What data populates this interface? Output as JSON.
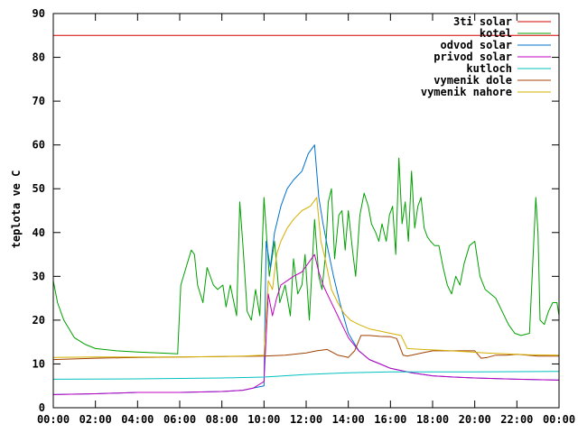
{
  "chart_data": {
    "type": "line",
    "title": "",
    "xlabel": "",
    "ylabel": "teplota ve C",
    "x_ticks": [
      "00:00",
      "02:00",
      "04:00",
      "06:00",
      "08:00",
      "10:00",
      "12:00",
      "14:00",
      "16:00",
      "18:00",
      "20:00",
      "22:00",
      "00:00"
    ],
    "y_ticks": [
      "0",
      "10",
      "20",
      "30",
      "40",
      "50",
      "60",
      "70",
      "80",
      "90"
    ],
    "xlim": [
      0,
      24
    ],
    "ylim": [
      0,
      90
    ],
    "grid": false,
    "legend_position": "top-right",
    "x_unit": "hours since 00:00",
    "series": [
      {
        "name": "3ti solar",
        "color": "#d40000",
        "x": [
          0,
          24
        ],
        "y": [
          85,
          85
        ]
      },
      {
        "name": "kotel",
        "color": "#00a000",
        "x": [
          0,
          0.2,
          0.5,
          1,
          1.5,
          2,
          3,
          4,
          5,
          5.5,
          5.9,
          6.05,
          6.3,
          6.55,
          6.7,
          6.85,
          7.1,
          7.3,
          7.6,
          7.8,
          8.05,
          8.2,
          8.4,
          8.7,
          8.85,
          9.0,
          9.2,
          9.4,
          9.6,
          9.8,
          10.0,
          10.25,
          10.5,
          10.75,
          11.0,
          11.25,
          11.4,
          11.6,
          11.8,
          11.95,
          12.15,
          12.4,
          12.6,
          12.75,
          12.9,
          13.05,
          13.2,
          13.35,
          13.55,
          13.7,
          13.85,
          14.0,
          14.2,
          14.35,
          14.55,
          14.75,
          14.95,
          15.1,
          15.3,
          15.45,
          15.6,
          15.8,
          15.95,
          16.1,
          16.25,
          16.4,
          16.55,
          16.7,
          16.85,
          17.0,
          17.15,
          17.3,
          17.45,
          17.6,
          17.75,
          17.9,
          18.1,
          18.3,
          18.5,
          18.7,
          18.9,
          19.1,
          19.3,
          19.5,
          19.75,
          20.0,
          20.25,
          20.5,
          20.75,
          21.0,
          21.3,
          21.6,
          21.9,
          22.2,
          22.6,
          22.9,
          23.0,
          23.1,
          23.3,
          23.5,
          23.7,
          23.9,
          24.0
        ],
        "y": [
          29,
          24,
          20,
          16,
          14.5,
          13.5,
          13,
          12.7,
          12.5,
          12.4,
          12.3,
          28,
          32,
          36,
          35,
          28,
          24,
          32,
          28,
          27,
          28,
          23,
          28,
          21,
          47,
          37,
          22,
          20,
          27,
          21,
          48,
          30,
          38,
          24,
          28,
          21,
          34,
          26,
          28,
          35,
          20,
          43,
          30,
          27,
          34,
          47,
          50,
          34,
          44,
          45,
          36,
          45,
          36,
          30,
          44,
          49,
          46,
          42,
          40,
          38,
          42,
          38,
          44,
          46,
          35,
          57,
          42,
          47,
          38,
          54,
          41,
          46,
          48,
          41,
          39,
          38,
          37,
          37,
          32,
          28,
          26,
          30,
          28,
          33,
          37,
          38,
          30,
          27,
          26,
          25,
          22,
          19,
          17,
          16.5,
          17,
          48,
          40,
          20,
          19,
          22,
          24,
          24,
          21
        ]
      },
      {
        "name": "odvod solar",
        "color": "#0070d0",
        "x": [
          0,
          2,
          4,
          6,
          8,
          9,
          9.5,
          10.0,
          10.1,
          10.3,
          10.5,
          10.8,
          11.1,
          11.4,
          11.8,
          12.1,
          12.4,
          12.6,
          12.8,
          13.0,
          13.3,
          13.6,
          14.0,
          14.5,
          15.0,
          15.5,
          16.0,
          17,
          18,
          19,
          20,
          22,
          24
        ],
        "y": [
          3,
          3.2,
          3.5,
          3.5,
          3.7,
          4,
          4.5,
          5,
          38,
          32,
          40,
          46,
          50,
          52,
          54,
          58,
          60,
          48,
          42,
          37,
          30,
          24,
          17,
          13,
          11,
          10,
          9,
          8,
          7.3,
          7,
          6.8,
          6.5,
          6.3
        ]
      },
      {
        "name": "privod solar",
        "color": "#c000c0",
        "x": [
          0,
          2,
          4,
          6,
          8,
          9,
          9.5,
          10.0,
          10.2,
          10.4,
          10.6,
          10.8,
          11.1,
          11.4,
          11.8,
          12.1,
          12.4,
          12.6,
          12.8,
          13.0,
          13.3,
          13.6,
          14.0,
          14.5,
          15.0,
          15.5,
          16.0,
          17,
          18,
          19,
          20,
          22,
          24
        ],
        "y": [
          3,
          3.2,
          3.5,
          3.5,
          3.7,
          4,
          4.5,
          6,
          26,
          21,
          25,
          28,
          29,
          30,
          31,
          33,
          35,
          31,
          28,
          26,
          23,
          20,
          16,
          13,
          11,
          10,
          9,
          8,
          7.3,
          7,
          6.8,
          6.5,
          6.3
        ]
      },
      {
        "name": "kutloch",
        "color": "#00c0c0",
        "x": [
          0,
          4,
          8,
          10,
          12,
          14,
          16,
          20,
          24
        ],
        "y": [
          6.5,
          6.6,
          6.8,
          7,
          7.6,
          8,
          8.2,
          8.2,
          8.3
        ]
      },
      {
        "name": "vymenik dole",
        "color": "#a04000",
        "x": [
          0,
          2,
          4,
          6,
          8,
          10,
          11,
          12,
          12.5,
          13.0,
          13.5,
          14.0,
          14.3,
          14.6,
          15.0,
          15.5,
          16.0,
          16.3,
          16.6,
          16.8,
          17.0,
          17.5,
          18.0,
          18.5,
          19.0,
          19.5,
          20.0,
          20.3,
          20.6,
          21.0,
          21.5,
          22.0,
          22.5,
          23.0,
          24.0
        ],
        "y": [
          11,
          11.3,
          11.5,
          11.6,
          11.7,
          11.8,
          12,
          12.5,
          13,
          13.3,
          12,
          11.5,
          13,
          16.5,
          16.5,
          16.3,
          16.2,
          15.8,
          12,
          11.8,
          12,
          12.5,
          13,
          13,
          13,
          13,
          13,
          11.3,
          11.5,
          12,
          12,
          12.2,
          12,
          11.8,
          11.8
        ]
      },
      {
        "name": "vymenik nahore",
        "color": "#d4b000",
        "x": [
          0,
          2,
          4,
          6,
          8,
          9,
          10,
          10.2,
          10.4,
          10.6,
          10.8,
          11.1,
          11.4,
          11.8,
          12.2,
          12.5,
          12.7,
          12.9,
          13.2,
          13.5,
          13.8,
          14.1,
          14.5,
          15.0,
          15.5,
          16.0,
          16.5,
          16.8,
          17.5,
          18.5,
          19.5,
          20.5,
          21.5,
          22.5,
          24
        ],
        "y": [
          11.5,
          11.6,
          11.6,
          11.6,
          11.7,
          11.8,
          12,
          29,
          27,
          35,
          38,
          41,
          43,
          45,
          46,
          48,
          38,
          34,
          27,
          24,
          21.5,
          20,
          19,
          18,
          17.5,
          17,
          16.5,
          13.5,
          13.3,
          13.1,
          12.8,
          12.5,
          12.3,
          12.1,
          12
        ]
      }
    ]
  }
}
